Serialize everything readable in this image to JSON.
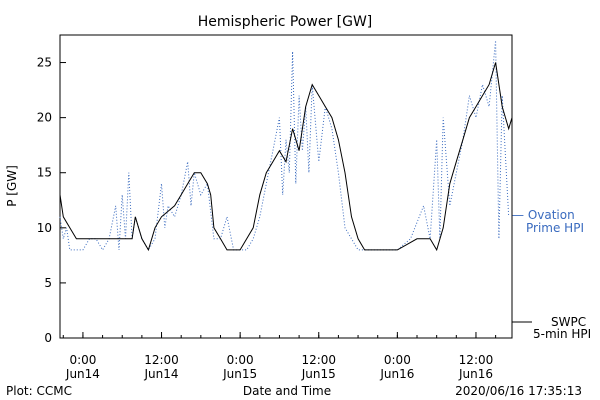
{
  "chart_data": {
    "type": "line",
    "title": "Hemispheric Power [GW]",
    "ylabel": "P [GW]",
    "xlabel": "Date and Time",
    "ylim": [
      0,
      27.5
    ],
    "xlim": [
      "2020-06-13T20:30",
      "2020-06-16T17:30"
    ],
    "yticks": [
      0,
      5,
      10,
      15,
      20,
      25
    ],
    "xticks": [
      {
        "t": "2020-06-14T00:00",
        "time": "0:00",
        "date": "Jun14"
      },
      {
        "t": "2020-06-14T12:00",
        "time": "12:00",
        "date": "Jun14"
      },
      {
        "t": "2020-06-15T00:00",
        "time": "0:00",
        "date": "Jun15"
      },
      {
        "t": "2020-06-15T12:00",
        "time": "12:00",
        "date": "Jun15"
      },
      {
        "t": "2020-06-16T00:00",
        "time": "0:00",
        "date": "Jun16"
      },
      {
        "t": "2020-06-16T12:00",
        "time": "12:00",
        "date": "Jun16"
      }
    ],
    "legend_placement": "right",
    "series": [
      {
        "name": "Ovation Prime HPI",
        "color": "#3a6bbf",
        "style": "dotted",
        "points": [
          [
            "2020-06-13T20:30",
            11
          ],
          [
            "2020-06-13T21:00",
            9
          ],
          [
            "2020-06-13T21:30",
            10
          ],
          [
            "2020-06-13T22:00",
            8
          ],
          [
            "2020-06-13T23:00",
            8
          ],
          [
            "2020-06-14T00:00",
            8
          ],
          [
            "2020-06-14T01:00",
            9
          ],
          [
            "2020-06-14T02:00",
            9
          ],
          [
            "2020-06-14T03:00",
            8
          ],
          [
            "2020-06-14T04:00",
            9
          ],
          [
            "2020-06-14T05:00",
            12
          ],
          [
            "2020-06-14T05:30",
            8
          ],
          [
            "2020-06-14T06:00",
            13
          ],
          [
            "2020-06-14T06:30",
            9
          ],
          [
            "2020-06-14T07:00",
            15
          ],
          [
            "2020-06-14T07:30",
            9
          ],
          [
            "2020-06-14T08:00",
            11
          ],
          [
            "2020-06-14T09:00",
            9
          ],
          [
            "2020-06-14T10:00",
            8
          ],
          [
            "2020-06-14T11:00",
            9
          ],
          [
            "2020-06-14T12:00",
            14
          ],
          [
            "2020-06-14T12:30",
            10
          ],
          [
            "2020-06-14T13:00",
            12
          ],
          [
            "2020-06-14T14:00",
            11
          ],
          [
            "2020-06-14T15:00",
            13
          ],
          [
            "2020-06-14T16:00",
            16
          ],
          [
            "2020-06-14T16:30",
            12
          ],
          [
            "2020-06-14T17:00",
            15
          ],
          [
            "2020-06-14T18:00",
            13
          ],
          [
            "2020-06-14T19:00",
            14
          ],
          [
            "2020-06-14T20:00",
            9
          ],
          [
            "2020-06-14T21:00",
            9
          ],
          [
            "2020-06-14T22:00",
            11
          ],
          [
            "2020-06-14T23:00",
            8
          ],
          [
            "2020-06-15T00:00",
            8
          ],
          [
            "2020-06-15T01:00",
            8
          ],
          [
            "2020-06-15T02:00",
            9
          ],
          [
            "2020-06-15T03:00",
            11
          ],
          [
            "2020-06-15T04:00",
            14
          ],
          [
            "2020-06-15T05:00",
            17
          ],
          [
            "2020-06-15T06:00",
            20
          ],
          [
            "2020-06-15T06:30",
            13
          ],
          [
            "2020-06-15T07:00",
            18
          ],
          [
            "2020-06-15T07:30",
            15
          ],
          [
            "2020-06-15T08:00",
            26
          ],
          [
            "2020-06-15T08:30",
            14
          ],
          [
            "2020-06-15T09:00",
            22
          ],
          [
            "2020-06-15T09:30",
            17
          ],
          [
            "2020-06-15T10:00",
            21
          ],
          [
            "2020-06-15T10:30",
            15
          ],
          [
            "2020-06-15T11:00",
            23
          ],
          [
            "2020-06-15T12:00",
            16
          ],
          [
            "2020-06-15T13:00",
            21
          ],
          [
            "2020-06-15T14:00",
            19
          ],
          [
            "2020-06-15T15:00",
            15
          ],
          [
            "2020-06-15T16:00",
            10
          ],
          [
            "2020-06-15T17:00",
            9
          ],
          [
            "2020-06-15T18:00",
            8
          ],
          [
            "2020-06-15T20:00",
            8
          ],
          [
            "2020-06-15T22:00",
            8
          ],
          [
            "2020-06-16T00:00",
            8
          ],
          [
            "2020-06-16T02:00",
            9
          ],
          [
            "2020-06-16T04:00",
            12
          ],
          [
            "2020-06-16T05:00",
            9
          ],
          [
            "2020-06-16T06:00",
            18
          ],
          [
            "2020-06-16T06:30",
            9
          ],
          [
            "2020-06-16T07:00",
            20
          ],
          [
            "2020-06-16T08:00",
            12
          ],
          [
            "2020-06-16T09:00",
            15
          ],
          [
            "2020-06-16T10:00",
            18
          ],
          [
            "2020-06-16T11:00",
            22
          ],
          [
            "2020-06-16T12:00",
            20
          ],
          [
            "2020-06-16T13:00",
            23
          ],
          [
            "2020-06-16T14:00",
            21
          ],
          [
            "2020-06-16T15:00",
            27
          ],
          [
            "2020-06-16T15:30",
            9
          ],
          [
            "2020-06-16T16:00",
            22
          ],
          [
            "2020-06-16T17:00",
            11
          ]
        ]
      },
      {
        "name": "SWPC 5-min HPI",
        "color": "#000000",
        "style": "solid",
        "points": [
          [
            "2020-06-13T20:30",
            13
          ],
          [
            "2020-06-13T21:00",
            11
          ],
          [
            "2020-06-13T22:00",
            10
          ],
          [
            "2020-06-13T23:00",
            9
          ],
          [
            "2020-06-14T00:00",
            9
          ],
          [
            "2020-06-14T02:00",
            9
          ],
          [
            "2020-06-14T04:00",
            9
          ],
          [
            "2020-06-14T06:00",
            9
          ],
          [
            "2020-06-14T07:30",
            9
          ],
          [
            "2020-06-14T08:00",
            11
          ],
          [
            "2020-06-14T09:00",
            9
          ],
          [
            "2020-06-14T10:00",
            8
          ],
          [
            "2020-06-14T11:00",
            10
          ],
          [
            "2020-06-14T12:00",
            11
          ],
          [
            "2020-06-14T14:00",
            12
          ],
          [
            "2020-06-14T15:00",
            13
          ],
          [
            "2020-06-14T16:00",
            14
          ],
          [
            "2020-06-14T17:00",
            15
          ],
          [
            "2020-06-14T18:00",
            15
          ],
          [
            "2020-06-14T19:00",
            14
          ],
          [
            "2020-06-14T19:30",
            13
          ],
          [
            "2020-06-14T20:00",
            10
          ],
          [
            "2020-06-14T21:00",
            9
          ],
          [
            "2020-06-14T22:00",
            8
          ],
          [
            "2020-06-14T23:00",
            8
          ],
          [
            "2020-06-15T00:00",
            8
          ],
          [
            "2020-06-15T01:00",
            9
          ],
          [
            "2020-06-15T02:00",
            10
          ],
          [
            "2020-06-15T03:00",
            13
          ],
          [
            "2020-06-15T04:00",
            15
          ],
          [
            "2020-06-15T05:00",
            16
          ],
          [
            "2020-06-15T06:00",
            17
          ],
          [
            "2020-06-15T07:00",
            16
          ],
          [
            "2020-06-15T08:00",
            19
          ],
          [
            "2020-06-15T09:00",
            17
          ],
          [
            "2020-06-15T10:00",
            21
          ],
          [
            "2020-06-15T11:00",
            23
          ],
          [
            "2020-06-15T12:00",
            22
          ],
          [
            "2020-06-15T13:00",
            21
          ],
          [
            "2020-06-15T14:00",
            20
          ],
          [
            "2020-06-15T15:00",
            18
          ],
          [
            "2020-06-15T16:00",
            15
          ],
          [
            "2020-06-15T17:00",
            11
          ],
          [
            "2020-06-15T18:00",
            9
          ],
          [
            "2020-06-15T19:00",
            8
          ],
          [
            "2020-06-15T22:00",
            8
          ],
          [
            "2020-06-16T00:00",
            8
          ],
          [
            "2020-06-16T03:00",
            9
          ],
          [
            "2020-06-16T05:00",
            9
          ],
          [
            "2020-06-16T06:00",
            8
          ],
          [
            "2020-06-16T07:00",
            10
          ],
          [
            "2020-06-16T08:00",
            14
          ],
          [
            "2020-06-16T09:00",
            16
          ],
          [
            "2020-06-16T10:00",
            18
          ],
          [
            "2020-06-16T11:00",
            20
          ],
          [
            "2020-06-16T12:00",
            21
          ],
          [
            "2020-06-16T13:00",
            22
          ],
          [
            "2020-06-16T14:00",
            23
          ],
          [
            "2020-06-16T15:00",
            25
          ],
          [
            "2020-06-16T16:00",
            21
          ],
          [
            "2020-06-16T17:00",
            19
          ],
          [
            "2020-06-16T17:30",
            20
          ]
        ]
      }
    ]
  },
  "legend": {
    "ovation_line1": "— Ovation",
    "ovation_line2": "Prime HPI",
    "swpc_line1": "SWPC",
    "swpc_line2": "5-min HPI"
  },
  "footer": {
    "left": "Plot: CCMC",
    "center": "Date and Time",
    "right": "2020/06/16 17:35:13"
  }
}
